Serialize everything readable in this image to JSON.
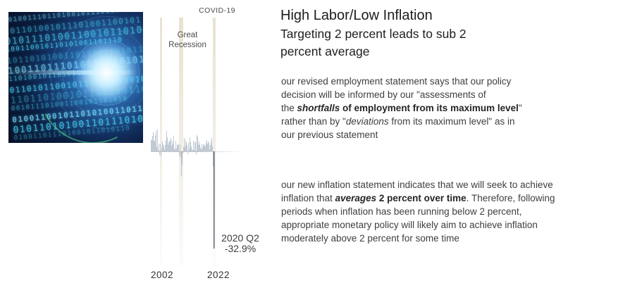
{
  "slide": {
    "title": "High Labor/Low Inflation",
    "subtitle": "Targeting 2 percent leads to sub 2\npercent average",
    "paragraph1_segments": [
      {
        "t": "our revised employment statement says that our policy\ndecision will be informed by our \"assessments of\nthe "
      },
      {
        "t": "shortfalls",
        "b": true,
        "i": true
      },
      {
        "t": " of employment from its maximum level",
        "b": true
      },
      {
        "t": "\"\nrather than by \""
      },
      {
        "t": "deviations",
        "i": true
      },
      {
        "t": " from its maximum level\" as in\nour previous statement"
      }
    ],
    "paragraph2_segments": [
      {
        "t": "our new inflation statement indicates that we will seek to achieve\ninflation that "
      },
      {
        "t": "averages",
        "b": true,
        "i": true
      },
      {
        "t": " 2 percent over time",
        "b": true
      },
      {
        "t": ". Therefore, following\nperiods when inflation has been running below 2 percent,\nappropriate monetary policy will likely aim to achieve inflation\nmoderately above 2 percent for some time"
      }
    ]
  },
  "image": {
    "name": "binary-data-tunnel",
    "binary_sample": "10100111011010010111010011001011010100110111010010110101100101110100110101101001011011",
    "colors": {
      "bg": "#0a1c3e",
      "glyph": "#3fd0f0",
      "glow": "#ffffff"
    }
  },
  "chart_data": {
    "type": "bar",
    "title": "",
    "covid_label": "COVID-19",
    "recession_label": "Great\nRecession",
    "annotation_line1": "2020 Q2",
    "annotation_line2": "-32.9%",
    "x_start_year": 1998,
    "quarters_per_year": 4,
    "ylim": [
      -35,
      10
    ],
    "grid": false,
    "legend": "none",
    "x_ticks": [
      {
        "year": 2002,
        "label": "2002"
      },
      {
        "year": 2022,
        "label": "2022"
      }
    ],
    "recessions": [
      {
        "start_year": 2001.2,
        "end_year": 2001.9
      },
      {
        "start_year": 2007.9,
        "end_year": 2009.6
      },
      {
        "start_year": 2020.1,
        "end_year": 2020.6
      }
    ],
    "values": [
      4.1,
      3.8,
      5.2,
      6.6,
      3.7,
      3.3,
      5.3,
      7.0,
      1.5,
      7.5,
      0.5,
      2.5,
      -1.3,
      2.5,
      -1.6,
      1.1,
      3.5,
      2.4,
      1.8,
      0.6,
      2.1,
      3.8,
      6.9,
      4.8,
      2.3,
      3.0,
      3.7,
      3.5,
      4.5,
      1.9,
      3.6,
      2.5,
      5.4,
      0.9,
      0.6,
      3.4,
      0.9,
      2.3,
      2.2,
      2.5,
      -1.6,
      2.3,
      -2.1,
      -8.5,
      -4.5,
      -0.6,
      1.5,
      4.5,
      1.5,
      3.7,
      3.0,
      2.0,
      -1.0,
      2.9,
      0.8,
      4.7,
      3.2,
      1.7,
      0.5,
      0.5,
      3.6,
      0.5,
      3.2,
      3.2,
      -1.1,
      5.5,
      5.0,
      2.3,
      3.3,
      2.3,
      1.3,
      0.6,
      2.4,
      1.2,
      2.4,
      2.0,
      2.3,
      1.7,
      2.9,
      3.8,
      2.5,
      3.5,
      2.9,
      0.7,
      2.2,
      3.4,
      4.6,
      1.8,
      -5.1,
      -32.9
    ],
    "colors": {
      "bar": "#8295a9",
      "drop_bar": "#5a6a7c",
      "band": "#e9e2cf",
      "axis": "#c6c6c6"
    }
  }
}
